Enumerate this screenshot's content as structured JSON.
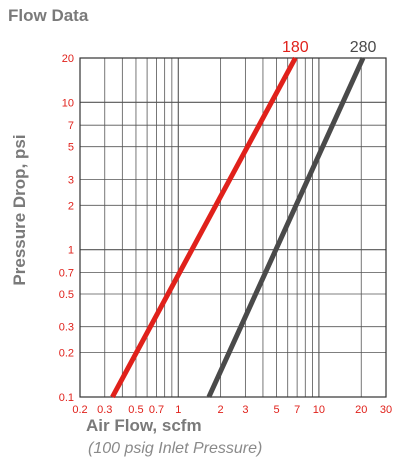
{
  "header": {
    "title": "Flow Data"
  },
  "colors": {
    "series_180": "#e0211b",
    "series_280": "#4a4a4a",
    "tick_text": "#e0211b",
    "grid": "#555555",
    "label": "#7a7a7a"
  },
  "chart_data": {
    "type": "line",
    "title": "Flow Data",
    "xlabel": "Air Flow, scfm",
    "subtitle": "(100 psig Inlet Pressure)",
    "ylabel": "Pressure Drop, psi",
    "xscale": "log",
    "yscale": "log",
    "xlim": [
      0.2,
      30
    ],
    "ylim": [
      0.1,
      20
    ],
    "grid": true,
    "x_ticks": [
      0.2,
      0.3,
      0.5,
      0.7,
      1,
      2,
      3,
      5,
      7,
      10,
      20,
      30
    ],
    "x_tick_labels": [
      "0.2",
      "0.3",
      "0.5",
      "0.7",
      "1",
      "2",
      "3",
      "5",
      "7",
      "10",
      "20",
      "30"
    ],
    "y_ticks": [
      0.1,
      0.2,
      0.3,
      0.5,
      0.7,
      1,
      2,
      3,
      5,
      7,
      10,
      20
    ],
    "y_tick_labels": [
      "0.1",
      "0.2",
      "0.3",
      "0.5",
      "0.7",
      "1",
      "2",
      "3",
      "5",
      "7",
      "10",
      "20"
    ],
    "series": [
      {
        "name": "180",
        "color": "#e0211b",
        "x": [
          0.34,
          6.8
        ],
        "y": [
          0.1,
          20
        ]
      },
      {
        "name": "280",
        "color": "#4a4a4a",
        "x": [
          1.65,
          20.6
        ],
        "y": [
          0.1,
          20
        ]
      }
    ]
  }
}
